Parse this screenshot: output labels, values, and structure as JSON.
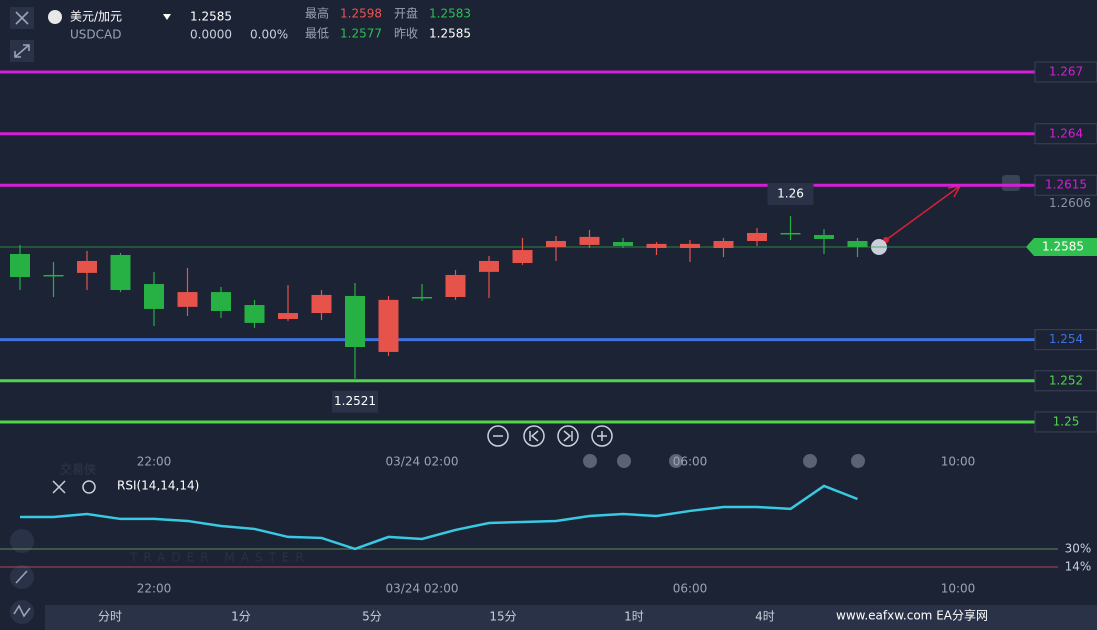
{
  "header": {
    "symbol": "美元/加元",
    "code": "USDCAD",
    "price": "1.2585",
    "change": "0.0000",
    "change_pct": "0.00%",
    "stats": [
      {
        "label": "最高",
        "value": "1.2598",
        "color": "#ef5350"
      },
      {
        "label": "开盘",
        "value": "1.2583",
        "color": "#2fbf4f"
      },
      {
        "label": "最低",
        "value": "1.2577",
        "color": "#2fbf4f"
      },
      {
        "label": "昨收",
        "value": "1.2585",
        "color": "#ffffff"
      }
    ]
  },
  "chart_data": [
    {
      "type": "candlestick",
      "up_color": "#e5534b",
      "down_color": "#27b043",
      "open": [
        1.25816,
        1.25714,
        1.25724,
        1.25811,
        1.2567,
        1.25559,
        1.25631,
        1.25568,
        1.255,
        1.25529,
        1.25612,
        1.2534,
        1.25607,
        1.25607,
        1.25729,
        1.25772,
        1.2585,
        1.2586,
        1.25874,
        1.25845,
        1.25845,
        1.25845,
        1.25879,
        1.25918,
        1.25908,
        1.25879
      ],
      "high": [
        1.2586,
        1.25777,
        1.25831,
        1.25821,
        1.25729,
        1.25748,
        1.25656,
        1.25593,
        1.25665,
        1.25641,
        1.25675,
        1.25612,
        1.2567,
        1.25738,
        1.25806,
        1.25894,
        1.25903,
        1.25933,
        1.25894,
        1.25874,
        1.25884,
        1.25894,
        1.25942,
        1.26,
        1.25937,
        1.25894
      ],
      "low": [
        1.25641,
        1.25607,
        1.25641,
        1.25631,
        1.25466,
        1.25515,
        1.25505,
        1.25457,
        1.25491,
        1.25495,
        1.2521,
        1.25321,
        1.25588,
        1.25593,
        1.25602,
        1.25763,
        1.25782,
        1.25845,
        1.25845,
        1.25811,
        1.25777,
        1.25801,
        1.25855,
        1.25884,
        1.25816,
        1.25801
      ],
      "close": [
        1.25704,
        1.25714,
        1.25782,
        1.25641,
        1.25549,
        1.25631,
        1.25539,
        1.25481,
        1.25529,
        1.25617,
        1.25364,
        1.25593,
        1.25607,
        1.25714,
        1.25782,
        1.25835,
        1.25879,
        1.25899,
        1.25855,
        1.25865,
        1.25865,
        1.25879,
        1.25918,
        1.25918,
        1.25889,
        1.2585
      ],
      "xlim": [
        0,
        31
      ],
      "ylim": [
        1.24888,
        1.26836
      ],
      "xticks": [
        {
          "value": 4,
          "label": "22:00"
        },
        {
          "value": 12,
          "label": "03/24 02:00"
        },
        {
          "value": 20,
          "label": "06:00"
        },
        {
          "value": 28,
          "label": "10:00"
        }
      ],
      "levels": [
        {
          "value": 1.267,
          "color": "#d41fd6"
        },
        {
          "value": 1.264,
          "color": "#d41fd6"
        },
        {
          "value": 1.2615,
          "color": "#d41fd6"
        },
        {
          "value": 1.254,
          "color": "#3d73e0"
        },
        {
          "value": 1.252,
          "color": "#4fd64a"
        },
        {
          "value": 1.25,
          "color": "#4fd64a"
        }
      ],
      "last_price": 1.2585,
      "marker_price": 1.2606,
      "annotations": [
        1.26,
        1.2521
      ]
    },
    {
      "type": "line",
      "title": "RSI(14,14,14)",
      "color": "#38c9e3",
      "values": [
        58.4,
        58.4,
        61.1,
        56.7,
        56.7,
        54.9,
        50.4,
        47.8,
        40.7,
        39.8,
        30,
        40.7,
        38.9,
        46.9,
        53.1,
        54,
        54.9,
        59.3,
        61.1,
        59.3,
        63.8,
        67.3,
        67.3,
        65.6,
        86,
        74.4
      ],
      "xlim": [
        0,
        31
      ],
      "ylim": [
        11.3,
        91.3
      ],
      "xticks": [
        {
          "value": 4,
          "label": "22:00"
        },
        {
          "value": 12,
          "label": "03/24 02:00"
        },
        {
          "value": 20,
          "label": "06:00"
        },
        {
          "value": 28,
          "label": "10:00"
        }
      ],
      "levels": [
        {
          "value": 30,
          "label": "30%",
          "color": "#5f8a5a"
        },
        {
          "value": 14,
          "label": "14%",
          "color": "#b0464f"
        }
      ]
    }
  ],
  "tabs": [
    "分时",
    "1分",
    "5分",
    "15分",
    "1时",
    "4时"
  ],
  "watermark": {
    "logo": "交易侠",
    "sub": "TRADER MASTER",
    "site": "www.eafxw.com  EA分享网"
  }
}
